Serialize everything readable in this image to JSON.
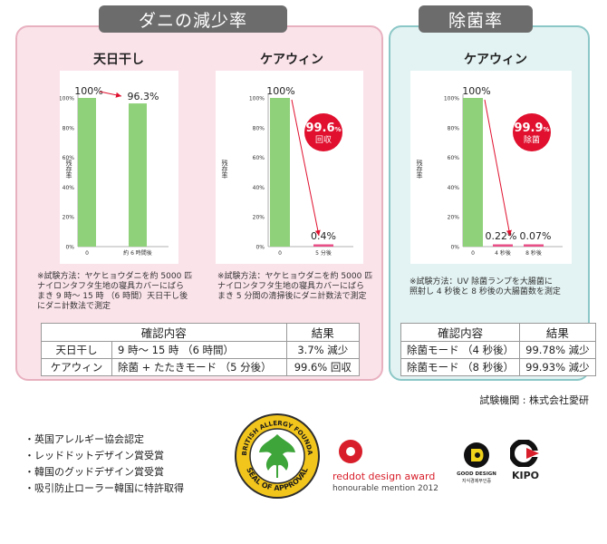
{
  "mite_panel": {
    "title": "ダニの減少率",
    "sun_chart": {
      "heading": "天日干し",
      "ylabel": "残存率",
      "ticks": [
        "100%",
        "80%",
        "60%",
        "40%",
        "20%",
        "0%"
      ],
      "note": "※試験方法：ヤケヒョウダニを約 5000 匹\nナイロンタフタ生地の寝具カバーにばら\nまき 9 時〜 15 時 （6 時間）天日干し後\nにダニ計数法で測定"
    },
    "care_chart": {
      "heading": "ケアウィン",
      "ylabel": "残存率",
      "ticks": [
        "100%",
        "80%",
        "60%",
        "40%",
        "20%",
        "0%"
      ],
      "badge_value": "99.6",
      "badge_unit": "%",
      "badge_label": "回収",
      "note": "※試験方法：ヤケヒョウダニを約 5000 匹\nナイロンタフタ生地の寝具カバーにばら\nまき 5 分間の清掃後にダニ計数法で測定"
    },
    "table": {
      "headers": [
        "確認内容",
        "結果"
      ],
      "rows": [
        {
          "name": "天日干し",
          "detail": "9 時〜 15 時 （6 時間）",
          "result": "3.7% 減少"
        },
        {
          "name": "ケアウィン",
          "detail": "除菌 + たたきモード （5 分後）",
          "result": "99.6% 回収"
        }
      ]
    }
  },
  "bact_panel": {
    "title": "除菌率",
    "chart": {
      "heading": "ケアウィン",
      "ylabel": "残存率",
      "ticks": [
        "100%",
        "80%",
        "60%",
        "40%",
        "20%",
        "0%"
      ],
      "badge_value": "99.9",
      "badge_unit": "%",
      "badge_label": "除菌",
      "note": "※試験方法：UV 除菌ランプを大腸菌に\n照射し 4 秒後と 8 秒後の大腸菌数を測定"
    },
    "table": {
      "headers": [
        "確認内容",
        "結果"
      ],
      "rows": [
        {
          "name": "除菌モード （4 秒後）",
          "result": "99.78% 減少"
        },
        {
          "name": "除菌モード （8 秒後）",
          "result": "99.93% 減少"
        }
      ]
    }
  },
  "credit": "試験機関 : 株式会社愛研",
  "features": [
    "・英国アレルギー協会認定",
    "・レッドドットデザイン賞受賞",
    "・韓国のグッドデザイン賞受賞",
    "・吸引防止ローラー韓国に特許取得"
  ],
  "logos": {
    "seal_arc": "THE BRITISH ALLERGY FOUNDATION",
    "seal_text": "SEAL OF APPROVAL",
    "reddot_line1": "reddot design award",
    "reddot_line2": "honourable mention 2012",
    "gooddesign": "GOOD DESIGN",
    "gooddesign_sub": "지식경제부인증",
    "kipo": "KIPO"
  },
  "colors": {
    "bar": "#8fd17a",
    "bar_tiny": "#e84f86",
    "arrow": "#e0102e",
    "badge": "#e0102e",
    "mite_bg": "#fbe3ea",
    "bact_bg": "#e3f2f2"
  },
  "chart_data": [
    {
      "type": "bar",
      "title": "天日干し",
      "ylabel": "残存率",
      "categories": [
        "0",
        "約 6 時間後"
      ],
      "values": [
        100,
        96.3
      ],
      "value_labels": [
        "100%",
        "96.3%"
      ],
      "ylim": [
        0,
        100
      ],
      "unit": "%"
    },
    {
      "type": "bar",
      "title": "ケアウィン",
      "ylabel": "残存率",
      "categories": [
        "0",
        "5 分後"
      ],
      "values": [
        100,
        0.4
      ],
      "value_labels": [
        "100%",
        "0.4%"
      ],
      "ylim": [
        0,
        100
      ],
      "unit": "%"
    },
    {
      "type": "bar",
      "title": "ケアウィン",
      "ylabel": "残存率",
      "categories": [
        "0",
        "4 秒後",
        "8 秒後"
      ],
      "values": [
        100,
        0.22,
        0.07
      ],
      "value_labels": [
        "100%",
        "0.22%",
        "0.07%"
      ],
      "ylim": [
        0,
        100
      ],
      "unit": "%"
    }
  ]
}
